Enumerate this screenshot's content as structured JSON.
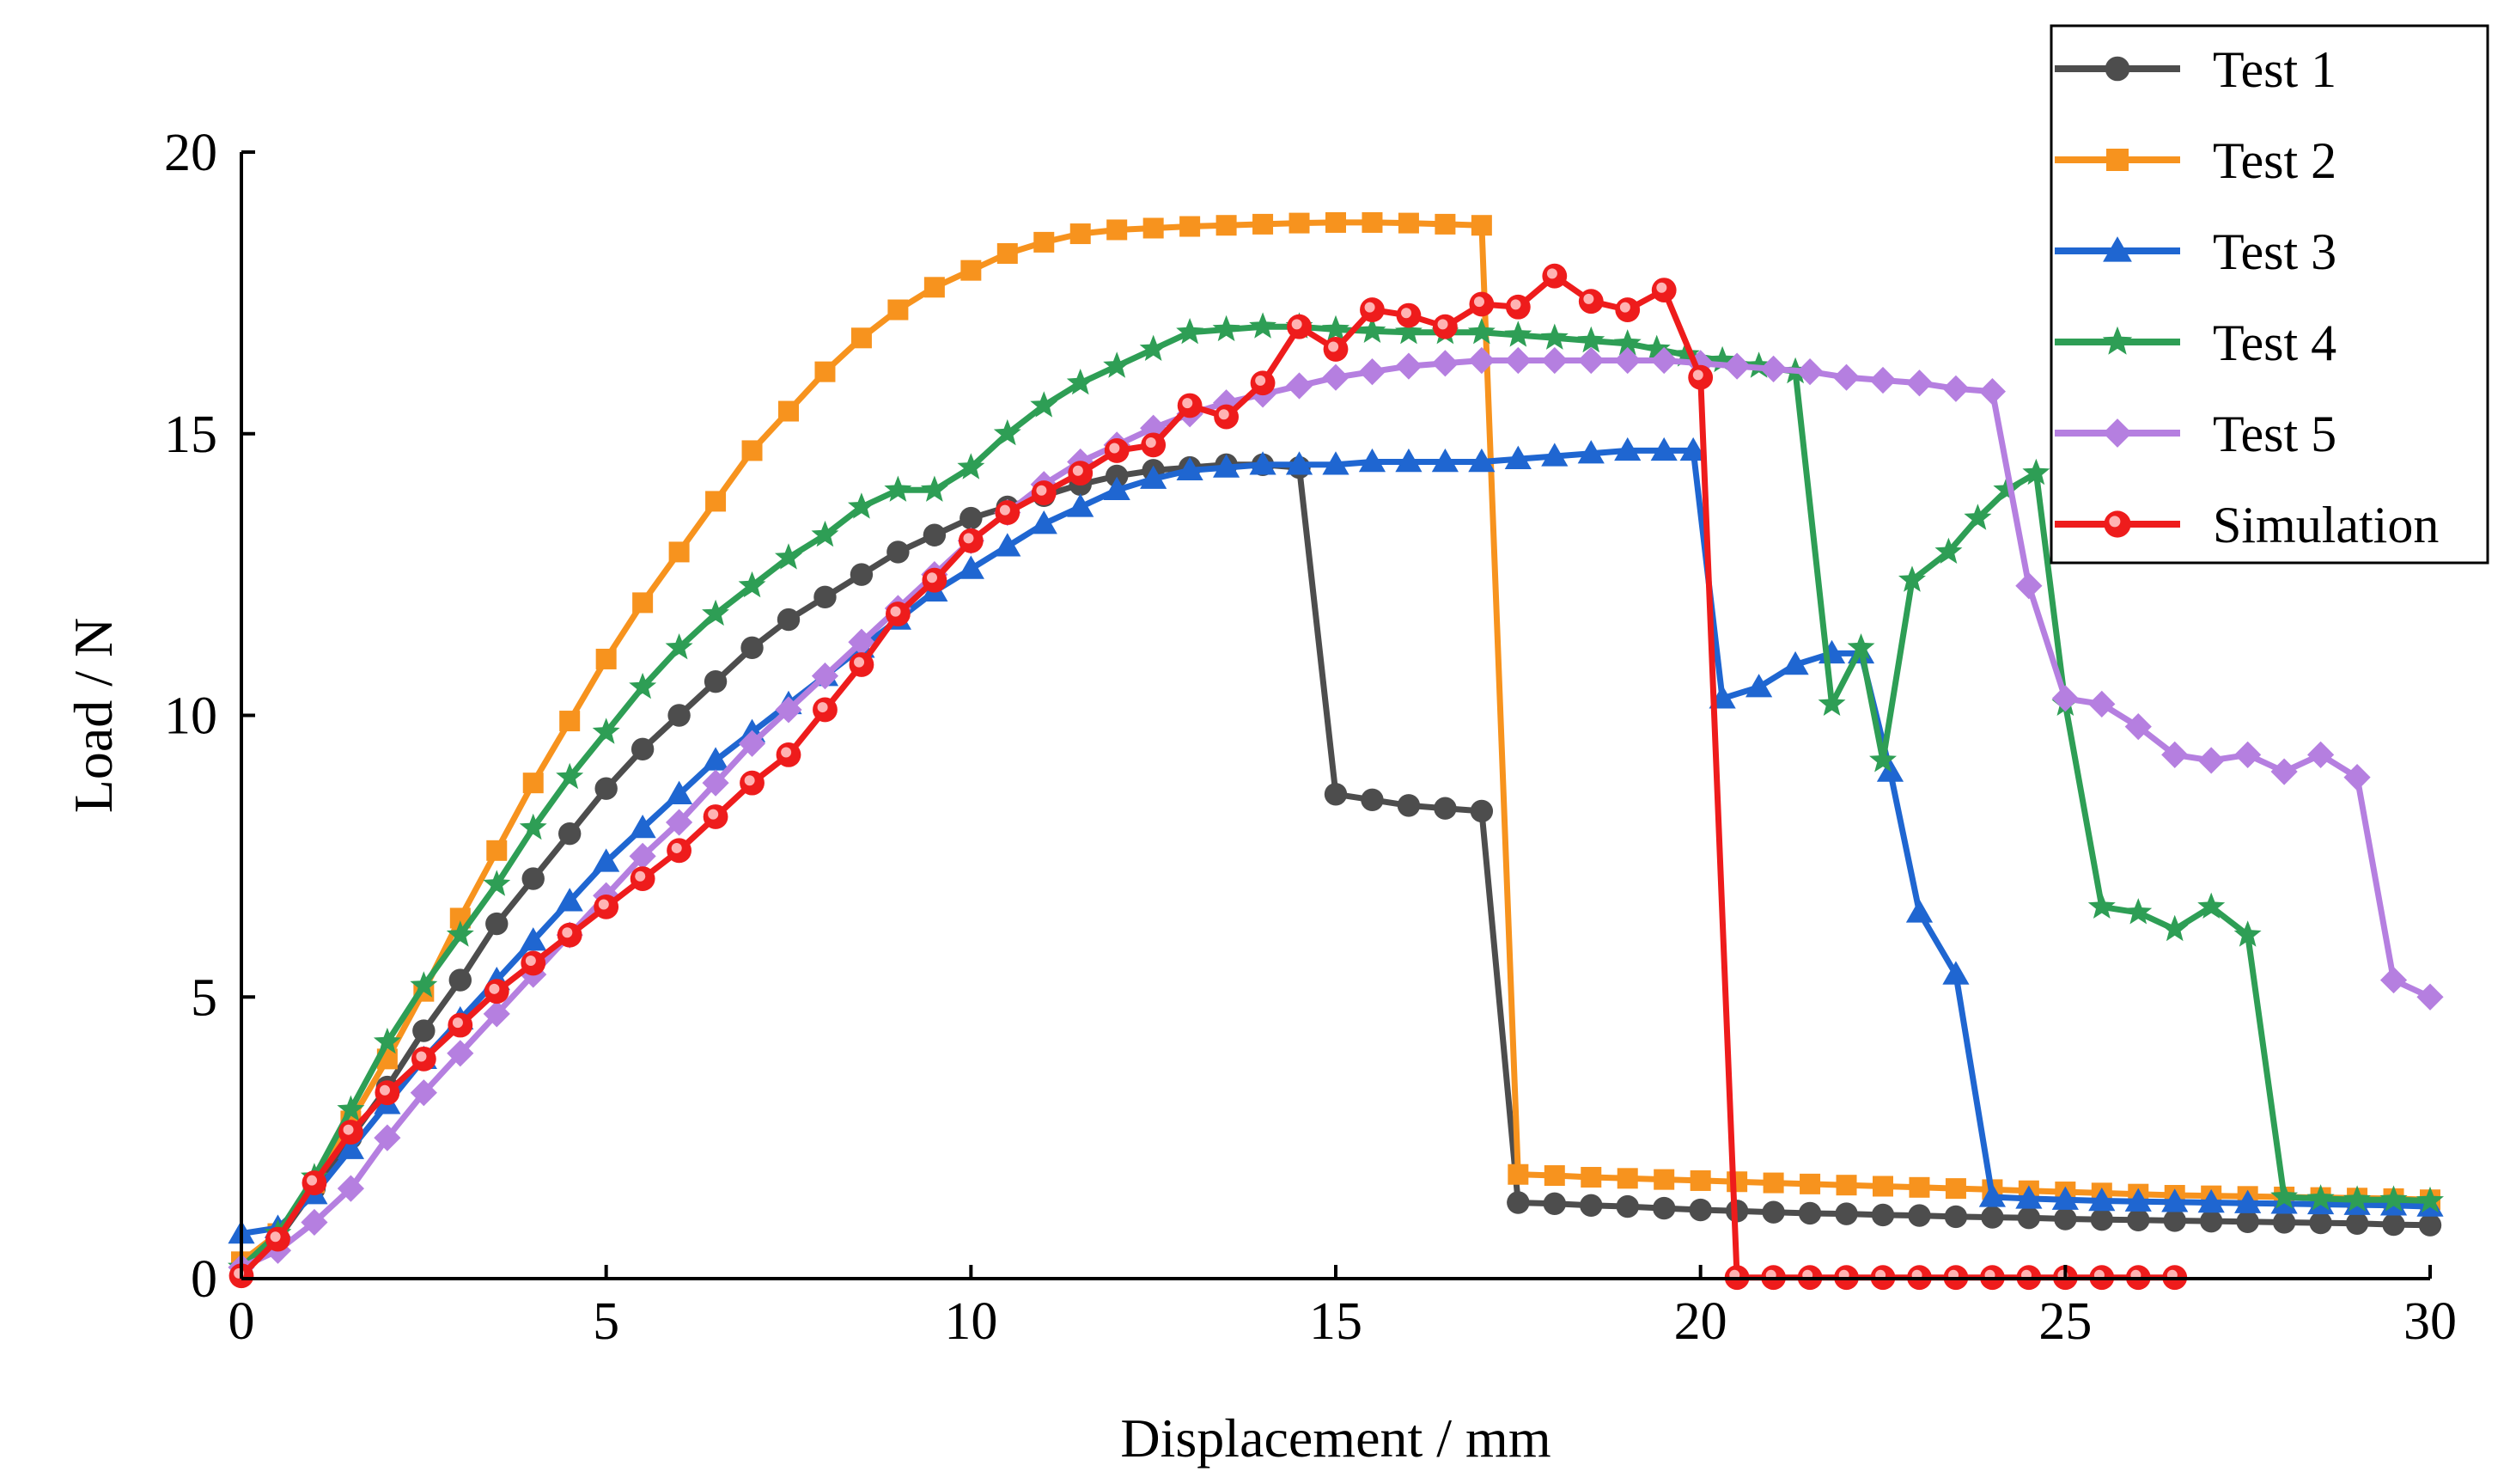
{
  "chart_data": {
    "type": "line",
    "title": "",
    "xlabel": "Displacement / mm",
    "ylabel": "Load / N",
    "xlim": [
      0,
      30
    ],
    "ylim": [
      0,
      20
    ],
    "x_ticks": [
      0,
      5,
      10,
      15,
      20,
      25,
      30
    ],
    "y_ticks": [
      0,
      5,
      10,
      15,
      20
    ],
    "grid": false,
    "legend_position": "top-right",
    "series": [
      {
        "name": "Test 1",
        "color": "#4d4d4d",
        "marker": "circle",
        "x": [
          0,
          0.5,
          1,
          1.5,
          2,
          2.5,
          3,
          3.5,
          4,
          4.5,
          5,
          5.5,
          6,
          6.5,
          7,
          7.5,
          8,
          8.5,
          9,
          9.5,
          10,
          10.5,
          11,
          11.5,
          12,
          12.5,
          13,
          13.5,
          14,
          14.5,
          15,
          15.5,
          16,
          16.5,
          17,
          17.5,
          18,
          18.5,
          19,
          19.5,
          20,
          20.5,
          21,
          21.5,
          22,
          22.5,
          23,
          23.5,
          24,
          24.5,
          25,
          25.5,
          26,
          26.5,
          27,
          27.5,
          28,
          28.5,
          29,
          29.5,
          30
        ],
        "y": [
          0.1,
          0.7,
          1.6,
          2.5,
          3.4,
          4.4,
          5.3,
          6.3,
          7.1,
          7.9,
          8.7,
          9.4,
          10.0,
          10.6,
          11.2,
          11.7,
          12.1,
          12.5,
          12.9,
          13.2,
          13.5,
          13.7,
          13.9,
          14.1,
          14.25,
          14.35,
          14.4,
          14.45,
          14.45,
          14.4,
          8.6,
          8.5,
          8.4,
          8.35,
          8.3,
          1.35,
          1.33,
          1.3,
          1.28,
          1.25,
          1.22,
          1.2,
          1.18,
          1.16,
          1.15,
          1.13,
          1.12,
          1.1,
          1.09,
          1.08,
          1.06,
          1.05,
          1.04,
          1.03,
          1.02,
          1.01,
          1.0,
          0.99,
          0.98,
          0.96,
          0.95
        ]
      },
      {
        "name": "Test 2",
        "color": "#f7931e",
        "marker": "square",
        "x": [
          0,
          0.5,
          1,
          1.5,
          2,
          2.5,
          3,
          3.5,
          4,
          4.5,
          5,
          5.5,
          6,
          6.5,
          7,
          7.5,
          8,
          8.5,
          9,
          9.5,
          10,
          10.5,
          11,
          11.5,
          12,
          12.5,
          13,
          13.5,
          14,
          14.5,
          15,
          15.5,
          16,
          16.5,
          17,
          17.5,
          18,
          18.5,
          19,
          19.5,
          20,
          20.5,
          21,
          21.5,
          22,
          22.5,
          23,
          23.5,
          24,
          24.5,
          25,
          25.5,
          26,
          26.5,
          27,
          27.5,
          28,
          28.5,
          29,
          29.5,
          30
        ],
        "y": [
          0.3,
          0.8,
          1.7,
          2.8,
          3.9,
          5.1,
          6.4,
          7.6,
          8.8,
          9.9,
          11.0,
          12.0,
          12.9,
          13.8,
          14.7,
          15.4,
          16.1,
          16.7,
          17.2,
          17.6,
          17.9,
          18.2,
          18.4,
          18.55,
          18.62,
          18.65,
          18.68,
          18.7,
          18.72,
          18.74,
          18.75,
          18.75,
          18.74,
          18.72,
          18.7,
          1.85,
          1.83,
          1.8,
          1.78,
          1.76,
          1.74,
          1.72,
          1.7,
          1.68,
          1.66,
          1.64,
          1.62,
          1.6,
          1.58,
          1.56,
          1.54,
          1.52,
          1.5,
          1.48,
          1.47,
          1.46,
          1.45,
          1.44,
          1.43,
          1.42,
          1.4
        ]
      },
      {
        "name": "Test 3",
        "color": "#1f66d1",
        "marker": "triangle",
        "x": [
          0,
          0.5,
          1,
          1.5,
          2,
          2.5,
          3,
          3.5,
          4,
          4.5,
          5,
          5.5,
          6,
          6.5,
          7,
          7.5,
          8,
          8.5,
          9,
          9.5,
          10,
          10.5,
          11,
          11.5,
          12,
          12.5,
          13,
          13.5,
          14,
          14.5,
          15,
          15.5,
          16,
          16.5,
          17,
          17.5,
          18,
          18.5,
          19,
          19.5,
          19.9,
          20.3,
          20.8,
          21.3,
          21.8,
          22.2,
          22.6,
          23.0,
          23.5,
          24.0,
          24.5,
          25,
          25.5,
          26,
          26.5,
          27,
          27.5,
          28,
          28.5,
          29,
          29.5,
          30
        ],
        "y": [
          0.8,
          0.9,
          1.5,
          2.3,
          3.1,
          3.9,
          4.6,
          5.3,
          6.0,
          6.7,
          7.4,
          8.0,
          8.6,
          9.2,
          9.7,
          10.2,
          10.7,
          11.2,
          11.7,
          12.2,
          12.6,
          13.0,
          13.4,
          13.7,
          14.0,
          14.2,
          14.35,
          14.4,
          14.45,
          14.45,
          14.45,
          14.5,
          14.5,
          14.5,
          14.5,
          14.55,
          14.6,
          14.65,
          14.7,
          14.7,
          14.7,
          10.3,
          10.5,
          10.9,
          11.1,
          11.1,
          9.0,
          6.5,
          5.4,
          1.45,
          1.42,
          1.4,
          1.38,
          1.37,
          1.36,
          1.35,
          1.34,
          1.33,
          1.32,
          1.31,
          1.3,
          1.28
        ]
      },
      {
        "name": "Test 4",
        "color": "#2e9e55",
        "marker": "star",
        "x": [
          0,
          0.5,
          1,
          1.5,
          2,
          2.5,
          3,
          3.5,
          4,
          4.5,
          5,
          5.5,
          6,
          6.5,
          7,
          7.5,
          8,
          8.5,
          9,
          9.5,
          10,
          10.5,
          11,
          11.5,
          12,
          12.5,
          13,
          13.5,
          14,
          14.5,
          15,
          15.5,
          16,
          16.5,
          17,
          17.5,
          18,
          18.5,
          19,
          19.4,
          19.8,
          20.3,
          20.8,
          21.3,
          21.8,
          22.2,
          22.5,
          22.9,
          23.4,
          23.8,
          24.2,
          24.6,
          25,
          25.5,
          26,
          26.5,
          27,
          27.5,
          28,
          28.5,
          29,
          29.5,
          30
        ],
        "y": [
          0.2,
          0.8,
          1.8,
          3.0,
          4.2,
          5.2,
          6.1,
          7.0,
          8.0,
          8.9,
          9.7,
          10.5,
          11.2,
          11.8,
          12.3,
          12.8,
          13.2,
          13.7,
          14.0,
          14.0,
          14.4,
          15.0,
          15.5,
          15.9,
          16.2,
          16.5,
          16.8,
          16.85,
          16.9,
          16.9,
          16.85,
          16.82,
          16.8,
          16.8,
          16.8,
          16.75,
          16.7,
          16.65,
          16.6,
          16.5,
          16.4,
          16.3,
          16.2,
          16.1,
          10.2,
          11.2,
          9.2,
          12.4,
          12.9,
          13.5,
          14.0,
          14.3,
          10.2,
          6.6,
          6.5,
          6.2,
          6.6,
          6.1,
          1.45,
          1.42,
          1.4,
          1.4,
          1.38
        ]
      },
      {
        "name": "Test 5",
        "color": "#b57fe0",
        "marker": "diamond",
        "x": [
          0,
          0.5,
          1,
          1.5,
          2,
          2.5,
          3,
          3.5,
          4,
          4.5,
          5,
          5.5,
          6,
          6.5,
          7,
          7.5,
          8,
          8.5,
          9,
          9.5,
          10,
          10.5,
          11,
          11.5,
          12,
          12.5,
          13,
          13.5,
          14,
          14.5,
          15,
          15.5,
          16,
          16.5,
          17,
          17.5,
          18,
          18.5,
          19,
          19.5,
          20,
          20.5,
          21,
          21.5,
          22,
          22.5,
          23,
          23.5,
          24,
          24.5,
          25,
          25.5,
          26,
          26.5,
          27,
          27.5,
          28,
          28.5,
          29,
          29.5,
          30
        ],
        "y": [
          0.2,
          0.5,
          1.0,
          1.6,
          2.5,
          3.3,
          4.0,
          4.7,
          5.4,
          6.1,
          6.8,
          7.5,
          8.1,
          8.8,
          9.5,
          10.1,
          10.7,
          11.3,
          11.9,
          12.5,
          13.1,
          13.6,
          14.1,
          14.5,
          14.8,
          15.1,
          15.35,
          15.55,
          15.7,
          15.85,
          16.0,
          16.1,
          16.2,
          16.25,
          16.3,
          16.3,
          16.3,
          16.3,
          16.3,
          16.3,
          16.25,
          16.2,
          16.15,
          16.1,
          16.0,
          15.95,
          15.9,
          15.8,
          15.75,
          12.3,
          10.3,
          10.2,
          9.8,
          9.3,
          9.2,
          9.3,
          9.0,
          9.3,
          8.9,
          5.3,
          5.0
        ]
      },
      {
        "name": "Simulation",
        "color": "#ee1c1c",
        "marker": "ring",
        "x": [
          0,
          0.5,
          1,
          1.5,
          2,
          2.5,
          3,
          3.5,
          4,
          4.5,
          5,
          5.5,
          6,
          6.5,
          7,
          7.5,
          8,
          8.5,
          9,
          9.5,
          10,
          10.5,
          11,
          11.5,
          12,
          12.5,
          13,
          13.5,
          14,
          14.5,
          15,
          15.5,
          16,
          16.5,
          17,
          17.5,
          18,
          18.5,
          19,
          19.5,
          20,
          20.5,
          21,
          21.5,
          22,
          22.5,
          23,
          23.5,
          24,
          24.5,
          25,
          25.5,
          26,
          26.5
        ],
        "y": [
          0.05,
          0.7,
          1.7,
          2.6,
          3.3,
          3.9,
          4.5,
          5.1,
          5.6,
          6.1,
          6.6,
          7.1,
          7.6,
          8.2,
          8.8,
          9.3,
          10.1,
          10.9,
          11.8,
          12.4,
          13.1,
          13.6,
          13.95,
          14.3,
          14.7,
          14.8,
          15.5,
          15.3,
          15.9,
          16.9,
          16.5,
          17.2,
          17.1,
          16.9,
          17.3,
          17.25,
          17.8,
          17.35,
          17.2,
          17.55,
          16.0,
          0.02,
          0.02,
          0.02,
          0.02,
          0.02,
          0.02,
          0.02,
          0.02,
          0.02,
          0.02,
          0.02,
          0.02,
          0.02
        ]
      }
    ]
  }
}
